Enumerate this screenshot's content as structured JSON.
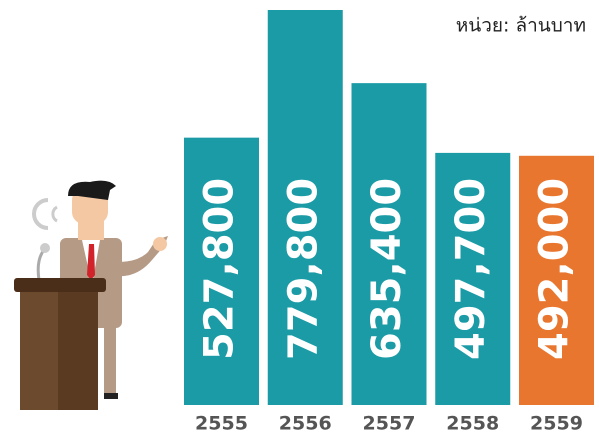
{
  "chart_data": {
    "type": "bar",
    "subtitle": "หน่วย: ล้านบาท",
    "categories": [
      "2555",
      "2556",
      "2557",
      "2558",
      "2559"
    ],
    "values": [
      527800,
      779800,
      635400,
      497700,
      492000
    ],
    "value_labels": [
      "527,800",
      "779,800",
      "635,400",
      "497,700",
      "492,000"
    ],
    "colors": [
      "#1a9ba6",
      "#1a9ba6",
      "#1a9ba6",
      "#1a9ba6",
      "#e8762f"
    ]
  }
}
